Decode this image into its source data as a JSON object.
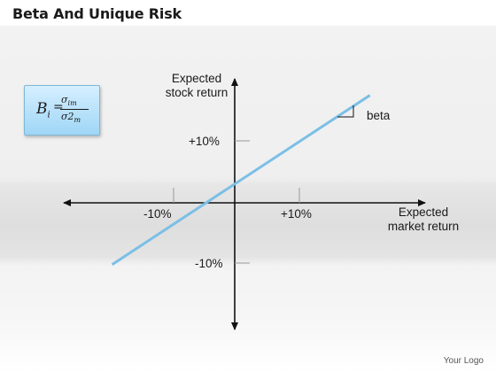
{
  "title": "Beta And Unique Risk",
  "formula": {
    "lhs": "B",
    "lhs_sub": "i",
    "equals": "=",
    "numerator": "σ",
    "numerator_sub": "im",
    "denominator": "σ2",
    "denominator_sub": "m"
  },
  "chart_data": {
    "type": "line",
    "y_axis_label_line1": "Expected",
    "y_axis_label_line2": "stock return",
    "x_axis_label_line1": "Expected",
    "x_axis_label_line2": "market return",
    "x_ticks": [
      "-10%",
      "+10%"
    ],
    "y_ticks": [
      "+10%",
      "-10%"
    ],
    "line_label": "beta",
    "line_color": "#7bbfe6",
    "series": [
      {
        "x": [
          -19.5,
          21.5
        ],
        "y": [
          -10.1,
          17.6
        ]
      }
    ]
  },
  "footer": "Your Logo"
}
